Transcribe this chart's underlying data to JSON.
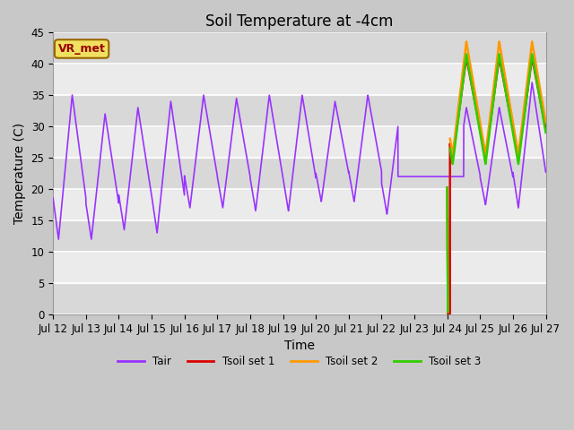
{
  "title": "Soil Temperature at -4cm",
  "xlabel": "Time",
  "ylabel": "Temperature (C)",
  "ylim": [
    0,
    45
  ],
  "colors": {
    "Tair": "#9933ff",
    "Tsoil1": "#dd0000",
    "Tsoil2": "#ff9900",
    "Tsoil3": "#33cc00"
  },
  "legend_entries": [
    "Tair",
    "Tsoil set 1",
    "Tsoil set 2",
    "Tsoil set 3"
  ],
  "x_tick_labels": [
    "Jul 12",
    "Jul 13",
    "Jul 14",
    "Jul 15",
    "Jul 16",
    "Jul 17",
    "Jul 18",
    "Jul 19",
    "Jul 20",
    "Jul 21",
    "Jul 22",
    "Jul 23",
    "Jul 24",
    "Jul 25",
    "Jul 26",
    "Jul 27"
  ],
  "legend_label": "VR_met",
  "title_fontsize": 12,
  "ylabel_fontsize": 10,
  "xlabel_fontsize": 10,
  "tick_fontsize": 8.5
}
